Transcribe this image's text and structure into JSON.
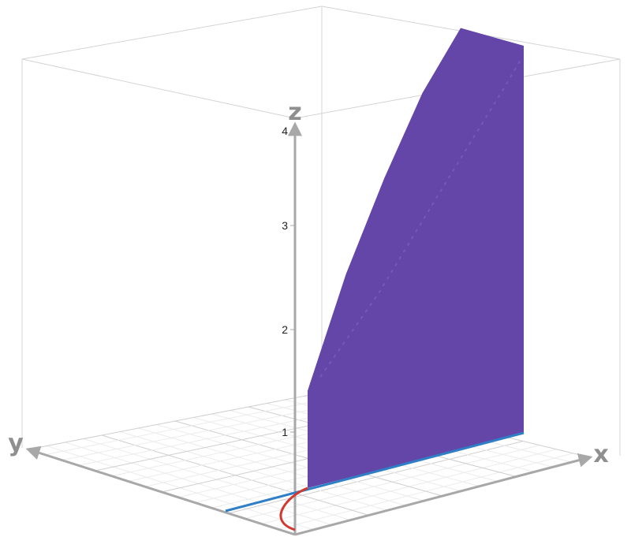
{
  "chart_data": {
    "type": "surface3d",
    "axes": {
      "x": {
        "label": "x"
      },
      "y": {
        "label": "y"
      },
      "z": {
        "label": "z",
        "ticks": [
          "1",
          "2",
          "3",
          "4"
        ]
      }
    },
    "surface": {
      "color": "#6346a8",
      "top_profile": [
        {
          "x": 0.0,
          "z": 1.5
        },
        {
          "x": 0.2,
          "z": 1.9
        },
        {
          "x": 0.5,
          "z": 2.5
        },
        {
          "x": 1.0,
          "z": 3.3
        },
        {
          "x": 1.5,
          "z": 4.0
        },
        {
          "x": 2.0,
          "z": 4.5
        }
      ]
    },
    "base_line": {
      "color": "#2f7fc6"
    },
    "curve": {
      "color": "#d1392f"
    },
    "colors": {
      "box": "#d4d4d4",
      "grid": "#dedede",
      "axis": "#a8a8a8"
    }
  }
}
